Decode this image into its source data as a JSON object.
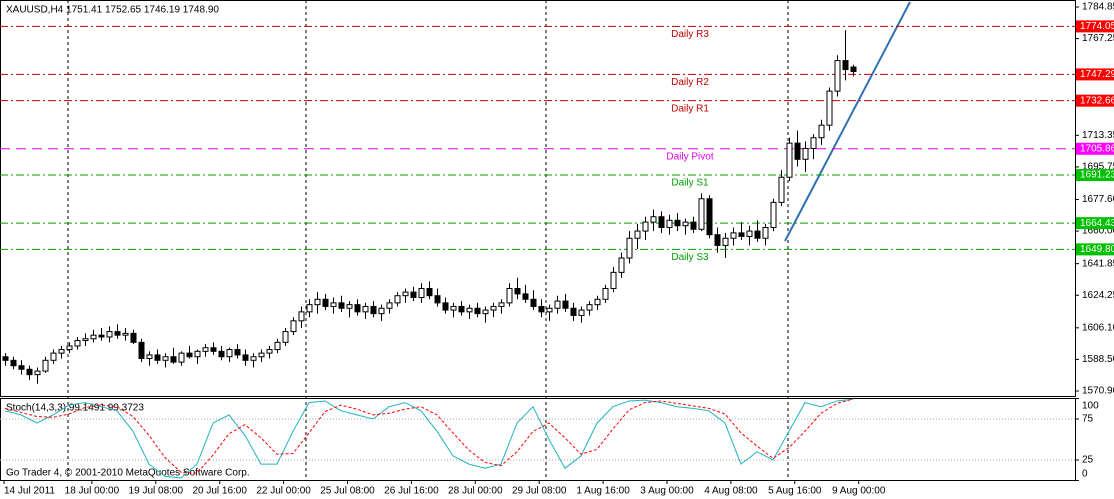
{
  "chart_data": {
    "type": "candlestick",
    "title": "XAUUSD,H4  1751.41 1752.65 1746.19 1748.90",
    "footer": "Go Trader 4, © 2001-2010 MetaQuotes Software Corp.",
    "ylim": [
      1570.9,
      1784.85
    ],
    "yticks": [
      1784.85,
      1767.25,
      1713.35,
      1695.75,
      {
        "value": 1677.6,
        "label": "1677.60"
      },
      {
        "value": 1660,
        "label": "1660.00"
      },
      1641.85,
      1624.25,
      {
        "value": 1606.1,
        "label": "1606.10"
      },
      {
        "value": 1588.5,
        "label": "1588.50"
      },
      {
        "value": 1570.9,
        "label": "1570.90"
      }
    ],
    "time_labels": [
      "14 Jul 2011",
      "18 Jul 00:00",
      "19 Jul 08:00",
      "20 Jul 16:00",
      "22 Jul 00:00",
      "25 Jul 08:00",
      "26 Jul 16:00",
      "28 Jul 00:00",
      "29 Jul 08:00",
      "1 Aug 16:00",
      "3 Aug 00:00",
      "4 Aug 08:00",
      "5 Aug 16:00",
      "9 Aug 00:00"
    ],
    "bull_color": "#ffffff",
    "bear_color": "#000000",
    "candles": [
      [
        1590,
        1592,
        1585,
        1588
      ],
      [
        1588,
        1590,
        1583,
        1585
      ],
      [
        1585,
        1588,
        1580,
        1583
      ],
      [
        1583,
        1585,
        1577,
        1580
      ],
      [
        1580,
        1584,
        1575,
        1582
      ],
      [
        1582,
        1590,
        1581,
        1588
      ],
      [
        1588,
        1594,
        1586,
        1592
      ],
      [
        1592,
        1596,
        1589,
        1594
      ],
      [
        1594,
        1598,
        1592,
        1596
      ],
      [
        1596,
        1601,
        1594,
        1599
      ],
      [
        1599,
        1603,
        1596,
        1600
      ],
      [
        1600,
        1605,
        1598,
        1602
      ],
      [
        1602,
        1606,
        1599,
        1601
      ],
      [
        1601,
        1607,
        1598,
        1604
      ],
      [
        1604,
        1608,
        1600,
        1602
      ],
      [
        1602,
        1606,
        1599,
        1603
      ],
      [
        1603,
        1605,
        1597,
        1598
      ],
      [
        1598,
        1600,
        1587,
        1589
      ],
      [
        1589,
        1593,
        1585,
        1591
      ],
      [
        1591,
        1594,
        1586,
        1588
      ],
      [
        1588,
        1592,
        1584,
        1590
      ],
      [
        1590,
        1595,
        1586,
        1587
      ],
      [
        1587,
        1593,
        1585,
        1592
      ],
      [
        1592,
        1596,
        1589,
        1590
      ],
      [
        1590,
        1594,
        1586,
        1593
      ],
      [
        1593,
        1597,
        1590,
        1595
      ],
      [
        1595,
        1598,
        1591,
        1593
      ],
      [
        1593,
        1596,
        1588,
        1590
      ],
      [
        1590,
        1595,
        1587,
        1594
      ],
      [
        1594,
        1597,
        1589,
        1591
      ],
      [
        1591,
        1594,
        1585,
        1588
      ],
      [
        1588,
        1592,
        1584,
        1590
      ],
      [
        1590,
        1594,
        1587,
        1592
      ],
      [
        1592,
        1596,
        1589,
        1594
      ],
      [
        1594,
        1600,
        1592,
        1598
      ],
      [
        1598,
        1606,
        1596,
        1604
      ],
      [
        1604,
        1612,
        1602,
        1610
      ],
      [
        1610,
        1618,
        1606,
        1615
      ],
      [
        1615,
        1622,
        1612,
        1619
      ],
      [
        1619,
        1626,
        1614,
        1622
      ],
      [
        1622,
        1625,
        1616,
        1618
      ],
      [
        1618,
        1623,
        1614,
        1620
      ],
      [
        1620,
        1624,
        1615,
        1617
      ],
      [
        1617,
        1621,
        1612,
        1619
      ],
      [
        1619,
        1622,
        1613,
        1615
      ],
      [
        1615,
        1620,
        1611,
        1618
      ],
      [
        1618,
        1621,
        1612,
        1614
      ],
      [
        1614,
        1619,
        1610,
        1617
      ],
      [
        1617,
        1622,
        1614,
        1620
      ],
      [
        1620,
        1626,
        1618,
        1624
      ],
      [
        1624,
        1628,
        1620,
        1626
      ],
      [
        1626,
        1629,
        1621,
        1623
      ],
      [
        1623,
        1631,
        1620,
        1628
      ],
      [
        1628,
        1632,
        1622,
        1624
      ],
      [
        1624,
        1628,
        1618,
        1620
      ],
      [
        1620,
        1623,
        1614,
        1616
      ],
      [
        1616,
        1620,
        1612,
        1618
      ],
      [
        1618,
        1621,
        1613,
        1615
      ],
      [
        1615,
        1619,
        1611,
        1617
      ],
      [
        1617,
        1620,
        1612,
        1614
      ],
      [
        1614,
        1618,
        1609,
        1616
      ],
      [
        1616,
        1620,
        1612,
        1618
      ],
      [
        1618,
        1622,
        1614,
        1620
      ],
      [
        1620,
        1631,
        1618,
        1628
      ],
      [
        1628,
        1634,
        1622,
        1625
      ],
      [
        1625,
        1630,
        1620,
        1622
      ],
      [
        1622,
        1627,
        1616,
        1618
      ],
      [
        1618,
        1622,
        1612,
        1615
      ],
      [
        1615,
        1619,
        1610,
        1617
      ],
      [
        1617,
        1624,
        1614,
        1621
      ],
      [
        1621,
        1625,
        1615,
        1617
      ],
      [
        1617,
        1620,
        1610,
        1613
      ],
      [
        1613,
        1618,
        1609,
        1616
      ],
      [
        1616,
        1621,
        1613,
        1619
      ],
      [
        1619,
        1624,
        1616,
        1622
      ],
      [
        1622,
        1630,
        1620,
        1628
      ],
      [
        1628,
        1640,
        1626,
        1637
      ],
      [
        1637,
        1648,
        1634,
        1645
      ],
      [
        1645,
        1660,
        1642,
        1656
      ],
      [
        1656,
        1664,
        1650,
        1660
      ],
      [
        1660,
        1668,
        1655,
        1665
      ],
      [
        1665,
        1672,
        1660,
        1668
      ],
      [
        1668,
        1671,
        1659,
        1662
      ],
      [
        1662,
        1669,
        1658,
        1666
      ],
      [
        1666,
        1670,
        1660,
        1663
      ],
      [
        1663,
        1667,
        1658,
        1665
      ],
      [
        1665,
        1668,
        1659,
        1661
      ],
      [
        1661,
        1681,
        1660,
        1678
      ],
      [
        1678,
        1680,
        1656,
        1658
      ],
      [
        1658,
        1662,
        1648,
        1652
      ],
      [
        1652,
        1659,
        1645,
        1656
      ],
      [
        1656,
        1662,
        1652,
        1659
      ],
      [
        1659,
        1665,
        1655,
        1657
      ],
      [
        1657,
        1663,
        1652,
        1660
      ],
      [
        1660,
        1666,
        1654,
        1656
      ],
      [
        1656,
        1664,
        1652,
        1662
      ],
      [
        1662,
        1678,
        1660,
        1676
      ],
      [
        1676,
        1694,
        1674,
        1690
      ],
      [
        1690,
        1712,
        1688,
        1709
      ],
      [
        1709,
        1716,
        1696,
        1700
      ],
      [
        1700,
        1710,
        1693,
        1706
      ],
      [
        1706,
        1714,
        1700,
        1712
      ],
      [
        1712,
        1722,
        1708,
        1719
      ],
      [
        1719,
        1740,
        1716,
        1738
      ],
      [
        1738,
        1758,
        1735,
        1755
      ],
      [
        1755,
        1772,
        1744,
        1750
      ],
      [
        1751.41,
        1752.65,
        1746.19,
        1748.9
      ]
    ],
    "levels": [
      {
        "name": "Daily R3",
        "value": 1774.05,
        "color": "#c00000",
        "box_color": "#ff0000"
      },
      {
        "name": "Daily R2",
        "value": 1747.29,
        "color": "#c00000",
        "box_color": "#ff0000"
      },
      {
        "name": "Daily R1",
        "value": 1732.66,
        "color": "#c00000",
        "box_color": "#ff0000"
      },
      {
        "name": "Daily Pivot",
        "value": 1705.86,
        "color": "#e000e0",
        "box_color": "#ff00ff"
      },
      {
        "name": "Daily S1",
        "value": 1691.23,
        "color": "#00a000",
        "box_color": "#00c000"
      },
      {
        "name": null,
        "value": 1664.43,
        "color": "#00a000",
        "box_color": "#00c000"
      },
      {
        "name": "Daily S3",
        "value": 1649.8,
        "value_label": "1649.80",
        "color": "#00a000",
        "box_color": "#00c000"
      }
    ],
    "stoch": {
      "label": "Stoch(14,3,3) 99.1491 99.3723",
      "ylim": [
        0,
        100
      ],
      "yticks": [
        100,
        75,
        25,
        0
      ],
      "series": [
        {
          "name": "main",
          "color": "#20b2c0",
          "values": [
            85,
            80,
            70,
            80,
            92,
            95,
            90,
            85,
            60,
            20,
            5,
            3,
            20,
            70,
            80,
            55,
            20,
            20,
            60,
            95,
            97,
            85,
            80,
            75,
            90,
            95,
            85,
            60,
            30,
            20,
            15,
            20,
            70,
            90,
            50,
            15,
            30,
            70,
            90,
            97,
            98,
            95,
            90,
            88,
            85,
            70,
            20,
            35,
            25,
            60,
            95,
            90,
            97,
            99.1491
          ]
        },
        {
          "name": "signal",
          "color": "#ff0000",
          "values": [
            88,
            83,
            78,
            77,
            81,
            89,
            92,
            90,
            78,
            55,
            28,
            10,
            9,
            31,
            57,
            68,
            52,
            32,
            33,
            58,
            84,
            92,
            87,
            80,
            82,
            87,
            90,
            80,
            58,
            37,
            22,
            18,
            35,
            60,
            70,
            52,
            32,
            38,
            63,
            86,
            95,
            97,
            94,
            91,
            88,
            81,
            58,
            42,
            27,
            40,
            60,
            82,
            94,
            99.3723
          ]
        }
      ]
    }
  }
}
